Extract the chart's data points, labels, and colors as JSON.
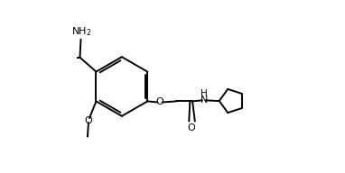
{
  "bg_color": "#ffffff",
  "line_color": "#000000",
  "figsize": [
    3.82,
    1.92
  ],
  "dpi": 100,
  "bond_width": 1.4,
  "xlim": [
    0.0,
    1.0
  ],
  "ylim": [
    0.05,
    0.95
  ]
}
